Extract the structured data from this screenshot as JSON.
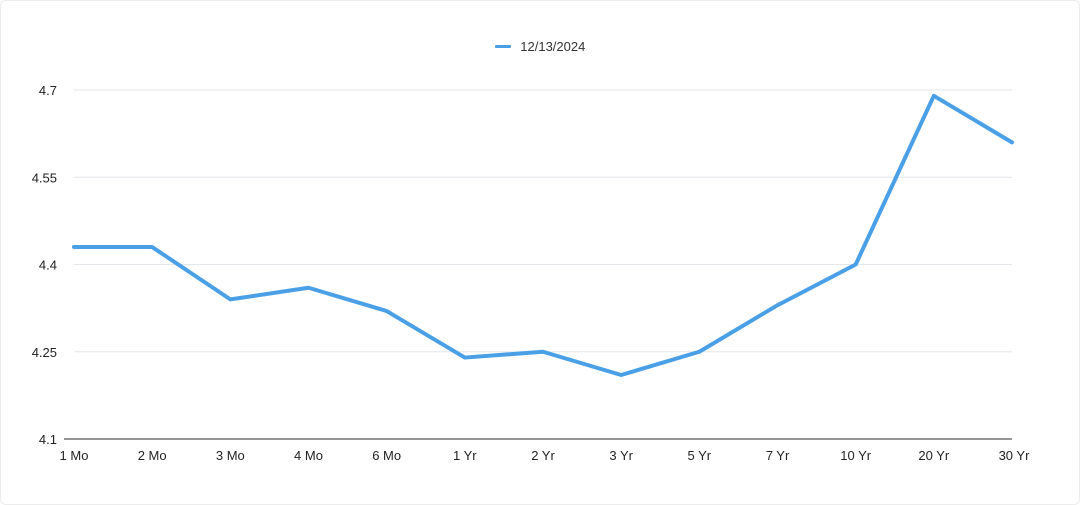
{
  "chart_data": {
    "type": "line",
    "categories": [
      "1 Mo",
      "2 Mo",
      "3 Mo",
      "4 Mo",
      "6 Mo",
      "1 Yr",
      "2 Yr",
      "3 Yr",
      "5 Yr",
      "7 Yr",
      "10 Yr",
      "20 Yr",
      "30 Yr"
    ],
    "series": [
      {
        "name": "12/13/2024",
        "values": [
          4.43,
          4.43,
          4.34,
          4.36,
          4.32,
          4.24,
          4.25,
          4.21,
          4.25,
          4.33,
          4.4,
          4.69,
          4.61
        ],
        "color": "#4aa0e6"
      }
    ],
    "yticks": [
      "4.7",
      "4.55",
      "4.4",
      "4.25",
      "4.1"
    ],
    "ylim": [
      4.1,
      4.7
    ],
    "grid": true,
    "legend_position": "top-center"
  }
}
